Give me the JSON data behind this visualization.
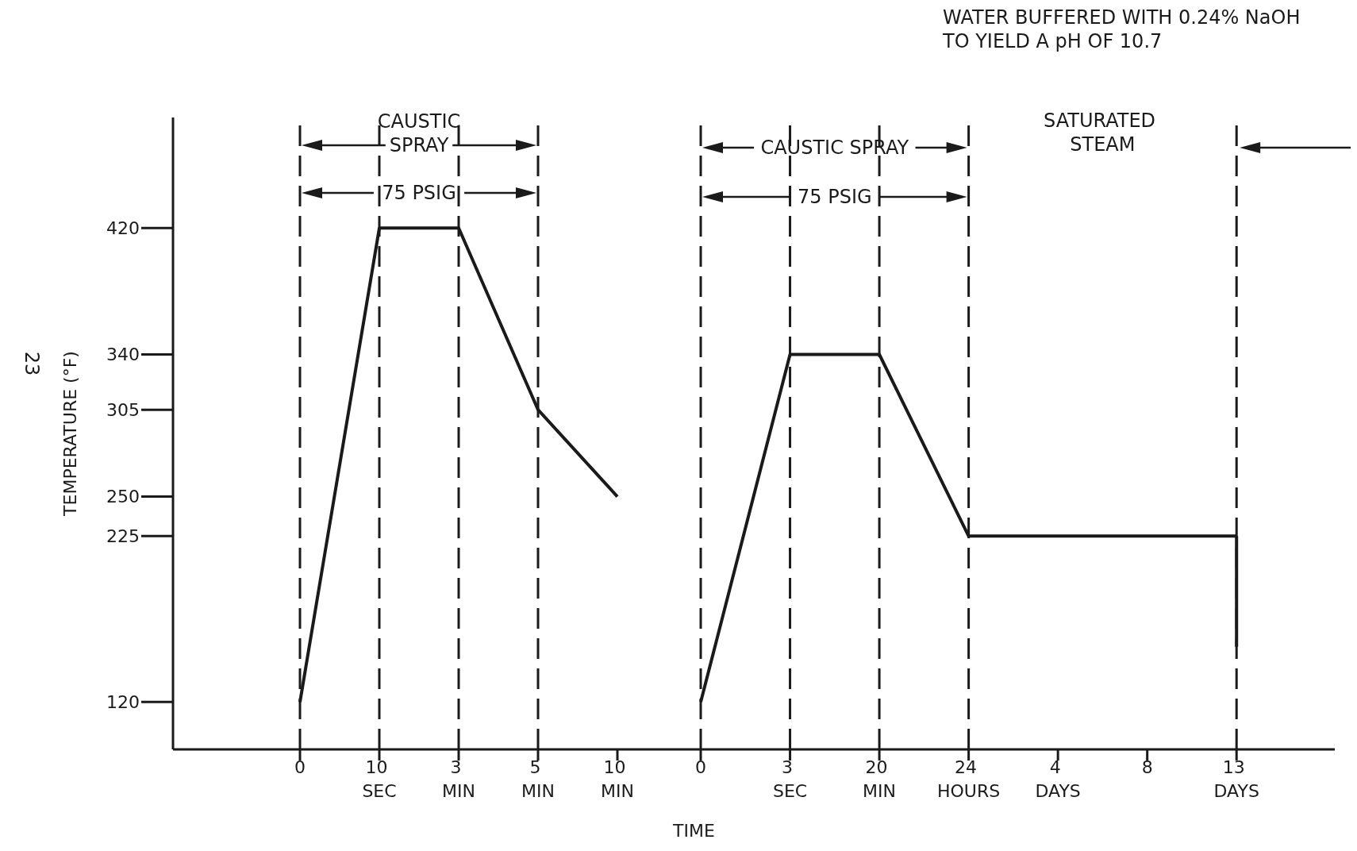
{
  "chart_data": [
    {
      "type": "line",
      "ylabel": "TEMPERATURE (°F)",
      "categories": [
        "0",
        "10 SEC",
        "3 MIN",
        "5 MIN",
        "10 MIN"
      ],
      "series": [
        {
          "color": "#1a1a1a",
          "values": [
            120,
            420,
            420,
            305,
            250
          ]
        }
      ],
      "ylim": [
        90,
        490
      ],
      "yticks": [
        120,
        225,
        250,
        305,
        340,
        420
      ],
      "marker": "none",
      "line_style": "solid",
      "ref_lines": [
        {
          "axis": "x",
          "value": "0",
          "line_style": "dashed",
          "color": "#1a1a1a"
        },
        {
          "axis": "x",
          "value": "10 SEC",
          "line_style": "dashed",
          "color": "#1a1a1a"
        },
        {
          "axis": "x",
          "value": "3 MIN",
          "line_style": "dashed",
          "color": "#1a1a1a"
        },
        {
          "axis": "x",
          "value": "5 MIN",
          "line_style": "dashed",
          "color": "#1a1a1a"
        }
      ],
      "annotations": [
        "CAUSTIC SPRAY",
        "75 PSIG",
        "23"
      ]
    },
    {
      "type": "line",
      "xlabel": "TIME",
      "categories": [
        "0",
        "3 SEC",
        "20 MIN",
        "24 HOURS",
        "4 DAYS",
        "8",
        "13 DAYS"
      ],
      "series": [
        {
          "color": "#1a1a1a",
          "values": [
            120,
            340,
            340,
            225,
            225,
            225,
            225
          ]
        },
        {
          "color": "#1a1a1a",
          "x": [
            "13 DAYS",
            "13 DAYS"
          ],
          "values": [
            225,
            155
          ]
        }
      ],
      "ylim": [
        90,
        490
      ],
      "tick_labels": "x",
      "marker": "none",
      "line_style": "solid",
      "ref_lines": [
        {
          "axis": "x",
          "value": "0",
          "line_style": "dashed",
          "color": "#1a1a1a"
        },
        {
          "axis": "x",
          "value": "3 SEC",
          "line_style": "dashed",
          "color": "#1a1a1a"
        },
        {
          "axis": "x",
          "value": "20 MIN",
          "line_style": "dashed",
          "color": "#1a1a1a"
        },
        {
          "axis": "x",
          "value": "24 HOURS",
          "line_style": "dashed",
          "color": "#1a1a1a"
        },
        {
          "axis": "x",
          "value": "13 DAYS",
          "line_style": "dashed",
          "color": "#1a1a1a"
        }
      ],
      "annotations": [
        "CAUSTIC SPRAY",
        "75 PSIG",
        "SATURATED STEAM",
        "WATER BUFFERED WITH 0.24% NaOH\nTO YIELD A pH OF 10.7"
      ]
    }
  ]
}
